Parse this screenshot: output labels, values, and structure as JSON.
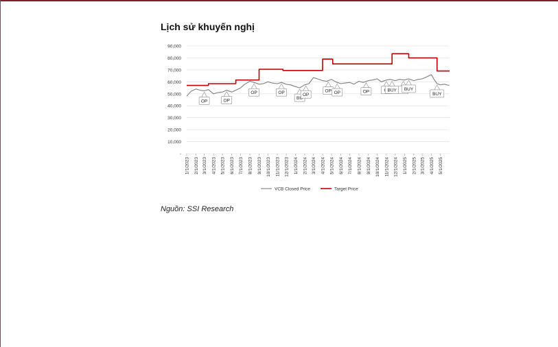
{
  "page": {
    "title": "Lịch sử khuyến nghị",
    "source": "Nguồn: SSI Research"
  },
  "colors": {
    "price_line": "#7f7f7f",
    "target_line": "#c00000",
    "frame": "#8b1a2e"
  },
  "chart_data": {
    "type": "line",
    "title": "Lịch sử khuyến nghị",
    "ylim": [
      0,
      90000
    ],
    "y_ticks": [
      {
        "value": 0,
        "label": "-"
      },
      {
        "value": 10000,
        "label": "10,000"
      },
      {
        "value": 20000,
        "label": "20,000"
      },
      {
        "value": 30000,
        "label": "30,000"
      },
      {
        "value": 40000,
        "label": "40,000"
      },
      {
        "value": 50000,
        "label": "50,000"
      },
      {
        "value": 60000,
        "label": "60,000"
      },
      {
        "value": 70000,
        "label": "70,000"
      },
      {
        "value": 80000,
        "label": "80,000"
      },
      {
        "value": 90000,
        "label": "90,000"
      }
    ],
    "x_ticks": [
      "1/1/2023",
      "2/1/2023",
      "3/1/2023",
      "4/1/2023",
      "5/1/2023",
      "6/1/2023",
      "7/1/2023",
      "8/1/2023",
      "9/1/2023",
      "10/1/2023",
      "11/1/2023",
      "12/1/2023",
      "1/1/2024",
      "2/1/2024",
      "3/1/2024",
      "4/1/2024",
      "5/1/2024",
      "6/1/2024",
      "7/1/2024",
      "8/1/2024",
      "9/1/2024",
      "10/1/2024",
      "11/1/2024",
      "12/1/2024",
      "1/1/2025",
      "2/1/2025",
      "3/1/2025",
      "4/1/2025",
      "5/1/2025"
    ],
    "legend": {
      "placement": "bottom",
      "entries": [
        "VCB Closed Price",
        "Target Price"
      ]
    },
    "series": [
      {
        "name": "VCB Closed Price",
        "x": [
          "1/1/2023",
          "1/15/2023",
          "2/1/2023",
          "2/15/2023",
          "3/1/2023",
          "3/15/2023",
          "4/1/2023",
          "4/15/2023",
          "5/1/2023",
          "5/15/2023",
          "6/1/2023",
          "6/15/2023",
          "7/1/2023",
          "7/15/2023",
          "8/1/2023",
          "8/15/2023",
          "9/1/2023",
          "9/15/2023",
          "10/1/2023",
          "10/15/2023",
          "11/1/2023",
          "11/15/2023",
          "12/1/2023",
          "12/15/2023",
          "1/1/2024",
          "1/15/2024",
          "2/1/2024",
          "2/15/2024",
          "3/1/2024",
          "3/15/2024",
          "4/1/2024",
          "4/15/2024",
          "5/1/2024",
          "5/15/2024",
          "6/1/2024",
          "6/15/2024",
          "7/1/2024",
          "7/15/2024",
          "8/1/2024",
          "8/15/2024",
          "9/1/2024",
          "9/15/2024",
          "10/1/2024",
          "10/15/2024",
          "11/1/2024",
          "11/15/2024",
          "12/1/2024",
          "12/15/2024",
          "1/1/2025",
          "1/15/2025",
          "2/1/2025",
          "2/15/2025",
          "3/1/2025",
          "3/15/2025",
          "4/1/2025",
          "4/10/2025",
          "4/20/2025",
          "5/1/2025",
          "5/15/2025",
          "5/31/2025"
        ],
        "values": [
          48000,
          52000,
          54000,
          53000,
          52500,
          53500,
          50000,
          51000,
          51500,
          53000,
          51500,
          53000,
          55000,
          58000,
          60500,
          59500,
          58000,
          58500,
          60000,
          59000,
          58500,
          59500,
          58000,
          57500,
          56000,
          55000,
          57500,
          58500,
          63500,
          62500,
          61000,
          60500,
          62000,
          60000,
          58500,
          59000,
          59500,
          58000,
          60500,
          59500,
          61000,
          61500,
          62500,
          60000,
          61500,
          62000,
          61000,
          62000,
          61500,
          62500,
          61000,
          62000,
          62500,
          64000,
          66000,
          62000,
          58500,
          57500,
          58000,
          57000
        ]
      },
      {
        "name": "Target Price",
        "step": true,
        "x": [
          "1/1/2023",
          "3/15/2023",
          "6/15/2023",
          "9/1/2023",
          "11/20/2023",
          "4/1/2024",
          "5/5/2024",
          "11/20/2024",
          "1/15/2025",
          "4/20/2025",
          "6/1/2025"
        ],
        "values": [
          57000,
          58500,
          61500,
          70500,
          69500,
          79000,
          75000,
          83500,
          80000,
          69000,
          69000
        ]
      }
    ],
    "annotations": [
      {
        "label": "OP",
        "x": "3/1/2023",
        "placement": "below"
      },
      {
        "label": "OP",
        "x": "5/15/2023",
        "placement": "below"
      },
      {
        "label": "OP",
        "x": "8/15/2023",
        "placement": "below"
      },
      {
        "label": "OP",
        "x": "11/15/2023",
        "placement": "below"
      },
      {
        "label": "BU",
        "x": "1/15/2024",
        "placement": "below"
      },
      {
        "label": "OP",
        "x": "2/5/2024",
        "placement": "below"
      },
      {
        "label": "OP",
        "x": "4/20/2024",
        "placement": "below"
      },
      {
        "label": "OP",
        "x": "5/20/2024",
        "placement": "below"
      },
      {
        "label": "OP",
        "x": "8/25/2024",
        "placement": "below"
      },
      {
        "label": "OI",
        "x": "11/1/2024",
        "placement": "below"
      },
      {
        "label": "BUY",
        "x": "11/20/2024",
        "placement": "below"
      },
      {
        "label": "B",
        "x": "12/28/2024",
        "placement": "below"
      },
      {
        "label": "BUY",
        "x": "1/15/2025",
        "placement": "below"
      },
      {
        "label": "BUY",
        "x": "4/20/2025",
        "placement": "below"
      }
    ]
  }
}
